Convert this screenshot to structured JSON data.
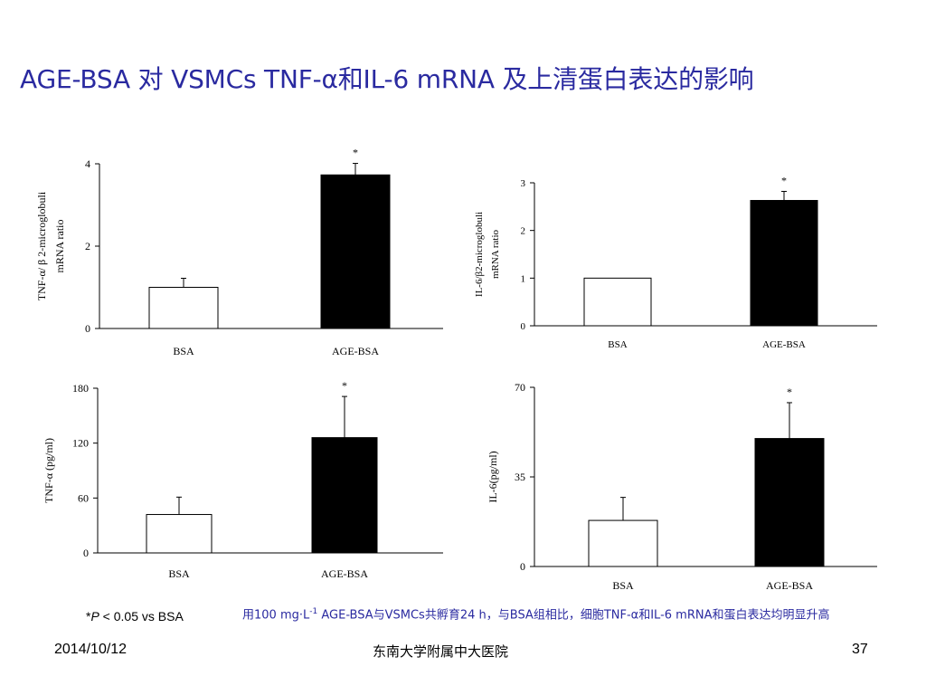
{
  "slide": {
    "title": "AGE-BSA 对 VSMCs TNF-α和IL-6 mRNA 及上清蛋白表达的影响",
    "footnote_star": "*",
    "footnote_p": "P",
    "footnote_rest": " < 0.05 vs BSA",
    "caption_pre": "用100 mg·L",
    "caption_sup": "-1",
    "caption_post": " AGE-BSA与VSMCs共孵育24 h，与BSA组相比，细胞TNF-α和IL-6 mRNA和蛋白表达均明显升高",
    "footer_date": "2014/10/12",
    "footer_org": "东南大学附属中大医院",
    "footer_page": "37"
  },
  "chart_data": [
    {
      "type": "bar",
      "categories": [
        "BSA",
        "AGE-BSA"
      ],
      "values": [
        1.0,
        3.73
      ],
      "errors": [
        0.22,
        0.28
      ],
      "significance": [
        "",
        "*"
      ],
      "ylabel_line1": "TNF-α/ β 2-microglobuli",
      "ylabel_line2": "mRNA ratio",
      "ylim": [
        0,
        4
      ],
      "yticks": [
        "0",
        "2",
        "4"
      ],
      "colors": [
        "#ffffff",
        "#000000"
      ]
    },
    {
      "type": "bar",
      "categories": [
        "BSA",
        "AGE-BSA"
      ],
      "values": [
        1.0,
        2.63
      ],
      "errors": [
        0.0,
        0.19
      ],
      "significance": [
        "",
        "*"
      ],
      "ylabel_line1": "IL-6/β2-microglobuli",
      "ylabel_line2": "mRNA ratio",
      "ylim": [
        0,
        3
      ],
      "yticks": [
        "0",
        "1",
        "2",
        "3"
      ],
      "colors": [
        "#ffffff",
        "#000000"
      ]
    },
    {
      "type": "bar",
      "categories": [
        "BSA",
        "AGE-BSA"
      ],
      "values": [
        42,
        126
      ],
      "errors": [
        19,
        45
      ],
      "significance": [
        "",
        "*"
      ],
      "ylabel_line1": "TNF-α (pg/ml)",
      "ylabel_line2": "",
      "ylim": [
        0,
        180
      ],
      "yticks": [
        "0",
        "60",
        "120",
        "180"
      ],
      "colors": [
        "#ffffff",
        "#000000"
      ]
    },
    {
      "type": "bar",
      "categories": [
        "BSA",
        "AGE-BSA"
      ],
      "values": [
        18,
        50
      ],
      "errors": [
        9,
        14
      ],
      "significance": [
        "",
        "*"
      ],
      "ylabel_line1": "IL-6(pg/ml)",
      "ylabel_line2": "",
      "ylim": [
        0,
        70
      ],
      "yticks": [
        "0",
        "35",
        "70"
      ],
      "colors": [
        "#ffffff",
        "#000000"
      ]
    }
  ]
}
